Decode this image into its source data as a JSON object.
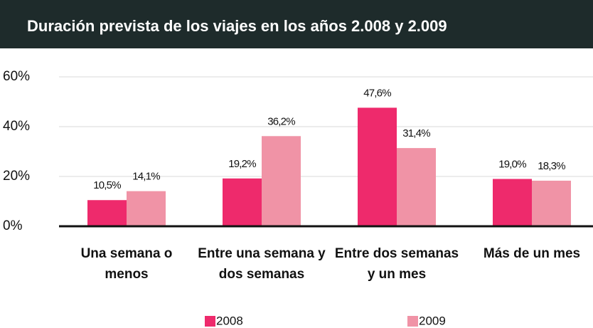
{
  "chart_data": {
    "type": "bar",
    "title": "Duración prevista de los viajes en los años 2.008 y 2.009",
    "categories": [
      "Una semana o menos",
      "Entre una semana y dos semanas",
      "Entre dos semanas y un mes",
      "Más de un mes"
    ],
    "series": [
      {
        "name": "2008",
        "color": "#ee2a6c",
        "values": [
          10.5,
          19.2,
          47.6,
          19.0
        ],
        "value_labels": [
          "10,5%",
          "19,2%",
          "47,6%",
          "19,0%"
        ]
      },
      {
        "name": "2009",
        "color": "#f093a6",
        "values": [
          14.1,
          36.2,
          31.4,
          18.3
        ],
        "value_labels": [
          "14,1%",
          "36,2%",
          "31,4%",
          "18,3%"
        ]
      }
    ],
    "ylim": [
      0,
      60
    ],
    "yticks": [
      {
        "value": 0,
        "label": "0%"
      },
      {
        "value": 20,
        "label": "20%"
      },
      {
        "value": 40,
        "label": "40%"
      },
      {
        "value": 60,
        "label": "60%"
      }
    ],
    "grid": true
  }
}
